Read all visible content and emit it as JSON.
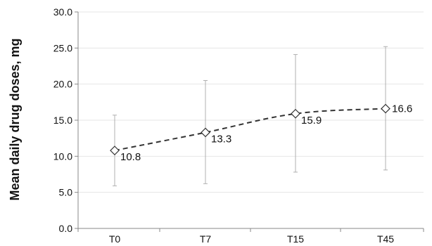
{
  "chart_data": {
    "type": "line",
    "title": "",
    "xlabel": "",
    "ylabel": "Mean daily drug doses, mg",
    "categories": [
      "T0",
      "T7",
      "T15",
      "T45"
    ],
    "series": [
      {
        "values": [
          10.8,
          13.3,
          15.9,
          16.6
        ],
        "error_low": [
          5.9,
          6.2,
          7.8,
          8.1
        ],
        "error_high": [
          15.7,
          20.5,
          24.1,
          25.2
        ],
        "line_style": "dashed",
        "marker": "diamond-open",
        "color": "#333333"
      }
    ],
    "data_labels": [
      "10.8",
      "13.3",
      "15.9",
      "16.6"
    ],
    "ylim": [
      0,
      30
    ],
    "y_ticks": [
      "0.0",
      "5.0",
      "10.0",
      "15.0",
      "20.0",
      "25.0",
      "30.0"
    ],
    "y_tick_values": [
      0,
      5,
      10,
      15,
      20,
      25,
      30
    ],
    "grid": "horizontal",
    "legend": "none",
    "colors": {
      "line": "#333333",
      "error_bar": "#b0b0b0",
      "grid": "#e6e6e6",
      "axis": "#888888",
      "marker_fill": "#ffffff"
    }
  }
}
